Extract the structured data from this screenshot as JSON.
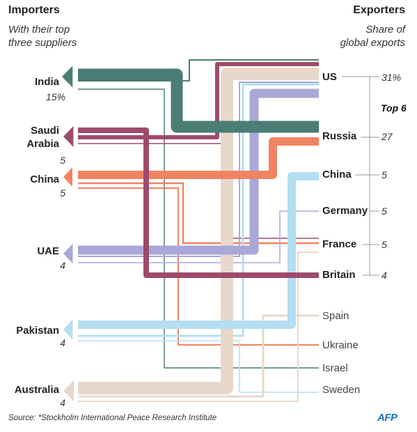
{
  "header": {
    "importers_title": "Importers",
    "importers_subtitle_1": "With their top",
    "importers_subtitle_2": "three suppliers",
    "exporters_title": "Exporters",
    "exporters_subtitle_1": "Share of",
    "exporters_subtitle_2": "global exports"
  },
  "importers": [
    {
      "name": "India",
      "share": "15%"
    },
    {
      "name_1": "Saudi",
      "name_2": "Arabia",
      "share": "5"
    },
    {
      "name": "China",
      "share": "5"
    },
    {
      "name": "UAE",
      "share": "4"
    },
    {
      "name": "Pakistan",
      "share": "4"
    },
    {
      "name": "Australia",
      "share": "4"
    }
  ],
  "exporters": [
    {
      "name": "US",
      "share": "31%"
    },
    {
      "name": "Russia",
      "share": "27"
    },
    {
      "name": "China",
      "share": "5"
    },
    {
      "name": "Germany",
      "share": "5"
    },
    {
      "name": "France",
      "share": "5"
    },
    {
      "name": "Britain",
      "share": "4"
    },
    {
      "name": "Spain"
    },
    {
      "name": "Ukraine"
    },
    {
      "name": "Israel"
    },
    {
      "name": "Sweden"
    }
  ],
  "top6_label": "Top 6",
  "source": "Source: *Stockholm International Peace Research Institute",
  "logo": "AFP",
  "colors": {
    "india": "#4a7d74",
    "saudi": "#9e4b6c",
    "china": "#ef8463",
    "uae": "#a9a8d8",
    "pakistan": "#b3def2",
    "australia": "#e8d8cb"
  }
}
